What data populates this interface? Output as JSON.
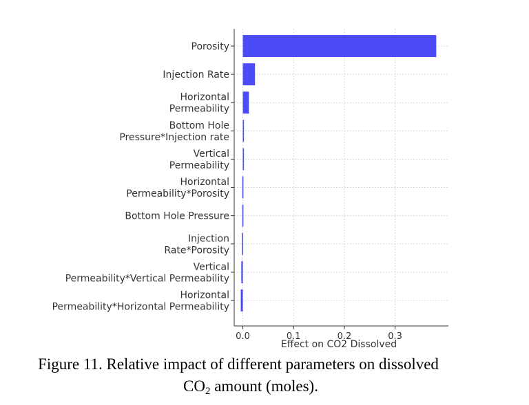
{
  "chart_data": {
    "type": "bar",
    "orientation": "horizontal",
    "categories": [
      [
        "Porosity"
      ],
      [
        "Injection Rate"
      ],
      [
        "Horizontal",
        "Permeability"
      ],
      [
        "Bottom Hole",
        "Pressure*Injection rate"
      ],
      [
        "Vertical",
        "Permeability"
      ],
      [
        "Horizontal",
        "Permeability*Porosity"
      ],
      [
        "Bottom Hole Pressure"
      ],
      [
        "Injection",
        "Rate*Porosity"
      ],
      [
        "Vertical",
        "Permeability*Vertical Permeability"
      ],
      [
        "Horizontal",
        "Permeability*Horizontal Permeability"
      ]
    ],
    "values": [
      0.381,
      0.024,
      0.012,
      0.002,
      0.002,
      -0.001,
      -0.001,
      -0.002,
      -0.003,
      -0.004
    ],
    "xlabel": "Effect on CO2 Dissolved",
    "ylabel": "",
    "xlim": [
      -0.017,
      0.405
    ],
    "xticks": [
      0.0,
      0.1,
      0.2,
      0.3
    ],
    "xtick_labels": [
      "0.0",
      "0.1",
      "0.2",
      "0.3"
    ],
    "bar_color": "#4b4bf7",
    "grid": true
  },
  "caption": {
    "line1": "Figure 11. Relative impact of different parameters on dissolved",
    "line2_pre": "CO",
    "line2_sub": "2",
    "line2_post": " amount (moles)."
  }
}
